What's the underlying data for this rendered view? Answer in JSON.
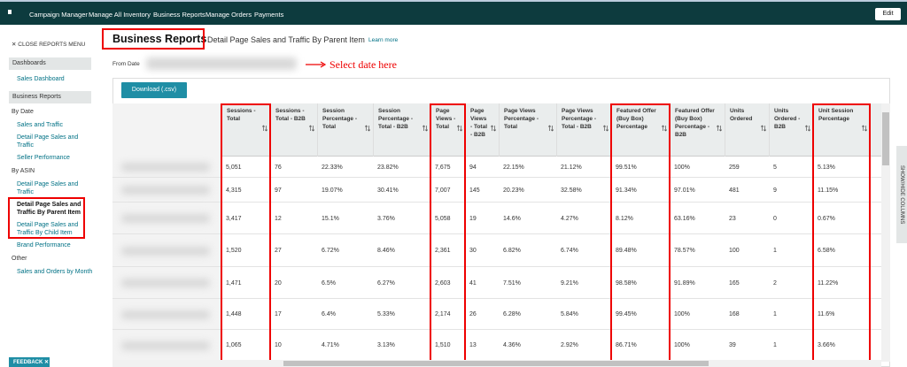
{
  "nav": {
    "items": [
      "Campaign Manager",
      "Manage All Inventory",
      "Business Reports",
      "Manage Orders",
      "Payments"
    ],
    "edit": "Edit"
  },
  "sidebar": {
    "close": "CLOSE REPORTS MENU",
    "sections": [
      {
        "title": "Dashboards",
        "groups": [
          {
            "links": [
              "Sales Dashboard"
            ]
          }
        ]
      },
      {
        "title": "Business Reports",
        "groups": [
          {
            "title": "By Date",
            "links": [
              "Sales and Traffic",
              "Detail Page Sales and Traffic",
              "Seller Performance"
            ]
          },
          {
            "title": "By ASIN",
            "links": [
              "Detail Page Sales and Traffic",
              "Detail Page Sales and Traffic By Parent Item",
              "Detail Page Sales and Traffic By Child Item",
              "Brand Performance"
            ]
          },
          {
            "title": "Other",
            "links": [
              "Sales and Orders by Month"
            ]
          }
        ]
      }
    ]
  },
  "header": {
    "title": "Business Reports",
    "subtitle": "Detail Page Sales and Traffic By Parent Item",
    "learn_more": "Learn more"
  },
  "date": {
    "label": "From Date",
    "annotation": "Select date here"
  },
  "download": "Download (.csv)",
  "table": {
    "columns": [
      "Sessions - Total",
      "Sessions - Total - B2B",
      "Session Percentage - Total",
      "Session Percentage - Total - B2B",
      "Page Views - Total",
      "Page Views - Total - B2B",
      "Page Views Percentage - Total",
      "Page Views Percentage - Total - B2B",
      "Featured Offer (Buy Box) Percentage",
      "Featured Offer (Buy Box) Percentage - B2B",
      "Units Ordered",
      "Units Ordered - B2B",
      "Unit Session Percentage"
    ],
    "rows": [
      [
        "5,051",
        "76",
        "22.33%",
        "23.82%",
        "7,675",
        "94",
        "22.15%",
        "21.12%",
        "99.51%",
        "100%",
        "259",
        "5",
        "5.13%"
      ],
      [
        "4,315",
        "97",
        "19.07%",
        "30.41%",
        "7,007",
        "145",
        "20.23%",
        "32.58%",
        "91.34%",
        "97.01%",
        "481",
        "9",
        "11.15%"
      ],
      [
        "3,417",
        "12",
        "15.1%",
        "3.76%",
        "5,058",
        "19",
        "14.6%",
        "4.27%",
        "8.12%",
        "63.16%",
        "23",
        "0",
        "0.67%"
      ],
      [
        "1,520",
        "27",
        "6.72%",
        "8.46%",
        "2,361",
        "30",
        "6.82%",
        "6.74%",
        "89.48%",
        "78.57%",
        "100",
        "1",
        "6.58%"
      ],
      [
        "1,471",
        "20",
        "6.5%",
        "6.27%",
        "2,603",
        "41",
        "7.51%",
        "9.21%",
        "98.58%",
        "91.89%",
        "165",
        "2",
        "11.22%"
      ],
      [
        "1,448",
        "17",
        "6.4%",
        "5.33%",
        "2,174",
        "26",
        "6.28%",
        "5.84%",
        "99.45%",
        "100%",
        "168",
        "1",
        "11.6%"
      ],
      [
        "1,065",
        "10",
        "4.71%",
        "3.13%",
        "1,510",
        "13",
        "4.36%",
        "2.92%",
        "86.71%",
        "100%",
        "39",
        "1",
        "3.66%"
      ]
    ]
  },
  "show_hide": "SHOW/HIDE COLUMNS",
  "feedback": "FEEDBACK"
}
